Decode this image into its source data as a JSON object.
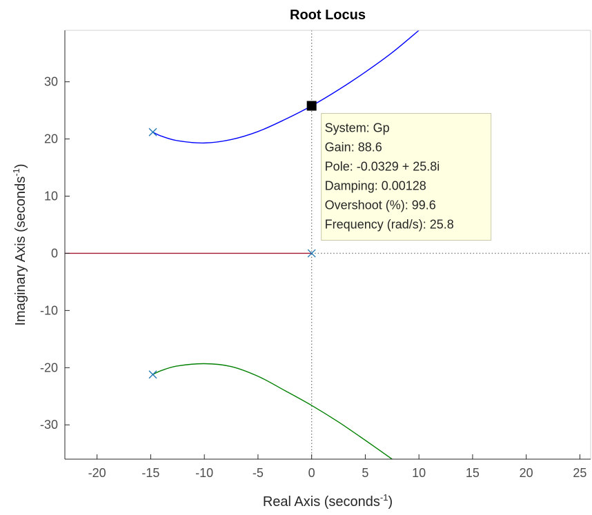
{
  "chart_data": {
    "type": "line",
    "title": "Root Locus",
    "xlabel": "Real Axis (seconds",
    "ylabel": "Imaginary Axis (seconds",
    "axis_unit_exponent": "-1",
    "axis_label_close": ")",
    "xlim": [
      -23,
      26
    ],
    "ylim": [
      -36,
      39
    ],
    "xticks": [
      -20,
      -15,
      -10,
      -5,
      0,
      5,
      10,
      15,
      20,
      25
    ],
    "xtick_labels": [
      "-20",
      "-15",
      "-10",
      "-5",
      "0",
      "5",
      "10",
      "15",
      "20",
      "25"
    ],
    "yticks": [
      -30,
      -20,
      -10,
      0,
      10,
      20,
      30
    ],
    "ytick_labels": [
      "-30",
      "-20",
      "-10",
      "0",
      "10",
      "20",
      "30"
    ],
    "grid": false,
    "series": [
      {
        "color": "#0000ff",
        "points": [
          [
            -14.8,
            21.2
          ],
          [
            -14.0,
            20.5
          ],
          [
            -12.5,
            19.7
          ],
          [
            -10.0,
            19.3
          ],
          [
            -7.5,
            19.9
          ],
          [
            -5.0,
            21.3
          ],
          [
            -2.5,
            23.4
          ],
          [
            0.0,
            25.8
          ],
          [
            2.5,
            28.6
          ],
          [
            5.0,
            31.7
          ],
          [
            7.5,
            35.1
          ],
          [
            10.0,
            39.0
          ]
        ]
      },
      {
        "color": "#008000",
        "points": [
          [
            -14.8,
            -21.2
          ],
          [
            -14.0,
            -20.5
          ],
          [
            -12.5,
            -19.7
          ],
          [
            -10.0,
            -19.3
          ],
          [
            -7.5,
            -19.8
          ],
          [
            -5.0,
            -21.5
          ],
          [
            -2.5,
            -24.0
          ],
          [
            0.0,
            -26.6
          ],
          [
            2.5,
            -29.5
          ],
          [
            5.0,
            -32.7
          ],
          [
            7.5,
            -36.0
          ]
        ]
      },
      {
        "color": "#a2142f",
        "points": [
          [
            -23.0,
            0.0
          ],
          [
            0.0,
            0.0
          ]
        ]
      }
    ],
    "poles": [
      [
        -14.8,
        21.2
      ],
      [
        -14.8,
        -21.2
      ],
      [
        0.0,
        0.0
      ]
    ],
    "pole_color": "#1f77b4",
    "dotted_reference_lines": {
      "x": 0,
      "y": 0,
      "color": "#777777"
    },
    "data_tip": {
      "point": [
        0.0,
        25.8
      ],
      "lines": [
        "System: Gp",
        "Gain: 88.6",
        "Pole: -0.0329 + 25.8i",
        "Damping: 0.00128",
        "Overshoot (%): 99.6",
        "Frequency (rad/s): 25.8"
      ]
    }
  }
}
